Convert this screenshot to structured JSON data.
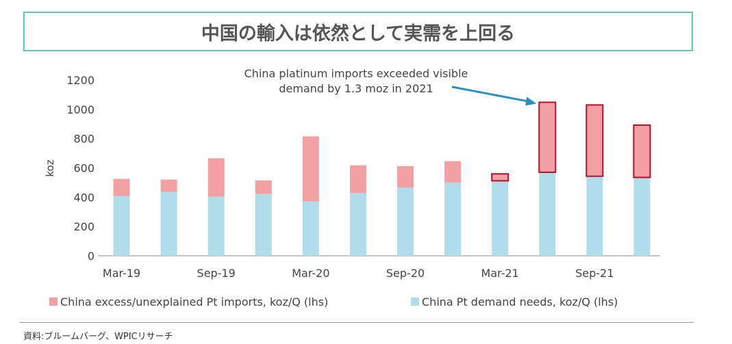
{
  "title": "中国の輸入は依然として実需を上回る",
  "source": "資料:ブルームバーグ、WPICリサーチ",
  "chart_data": {
    "type": "bar",
    "stacked": true,
    "categories": [
      "Mar-19",
      "Jun-19",
      "Sep-19",
      "Dec-19",
      "Mar-20",
      "Jun-20",
      "Sep-20",
      "Dec-20",
      "Mar-21",
      "Jun-21",
      "Sep-21",
      "Dec-21"
    ],
    "tick_labels": [
      "Mar-19",
      "",
      "Sep-19",
      "",
      "Mar-20",
      "",
      "Sep-20",
      "",
      "Mar-21",
      "",
      "Sep-21",
      ""
    ],
    "series": [
      {
        "name": "China Pt demand needs, koz/Q (lhs)",
        "color": "#b0dde9",
        "values": [
          408,
          437,
          404,
          422,
          372,
          428,
          465,
          500,
          512,
          570,
          543,
          535
        ]
      },
      {
        "name": "China excess/unexplained Pt imports, koz/Q (lhs)",
        "color": "#f2a0a2",
        "values": [
          117,
          83,
          262,
          93,
          443,
          190,
          147,
          146,
          47,
          478,
          487,
          357
        ]
      }
    ],
    "highlighted": [
      8,
      9,
      10,
      11
    ],
    "highlight_color": "#b0112a",
    "ylabel": "koz",
    "ylim": [
      0,
      1200
    ],
    "yticks": [
      0,
      200,
      400,
      600,
      800,
      1000,
      1200
    ],
    "legend_position": "bottom",
    "annotation": {
      "lines": [
        "China platinum  imports exceeded visible",
        "demand by 1.3 moz in 2021"
      ],
      "arrow_color": "#2b8fc0",
      "target_index": 9
    }
  }
}
